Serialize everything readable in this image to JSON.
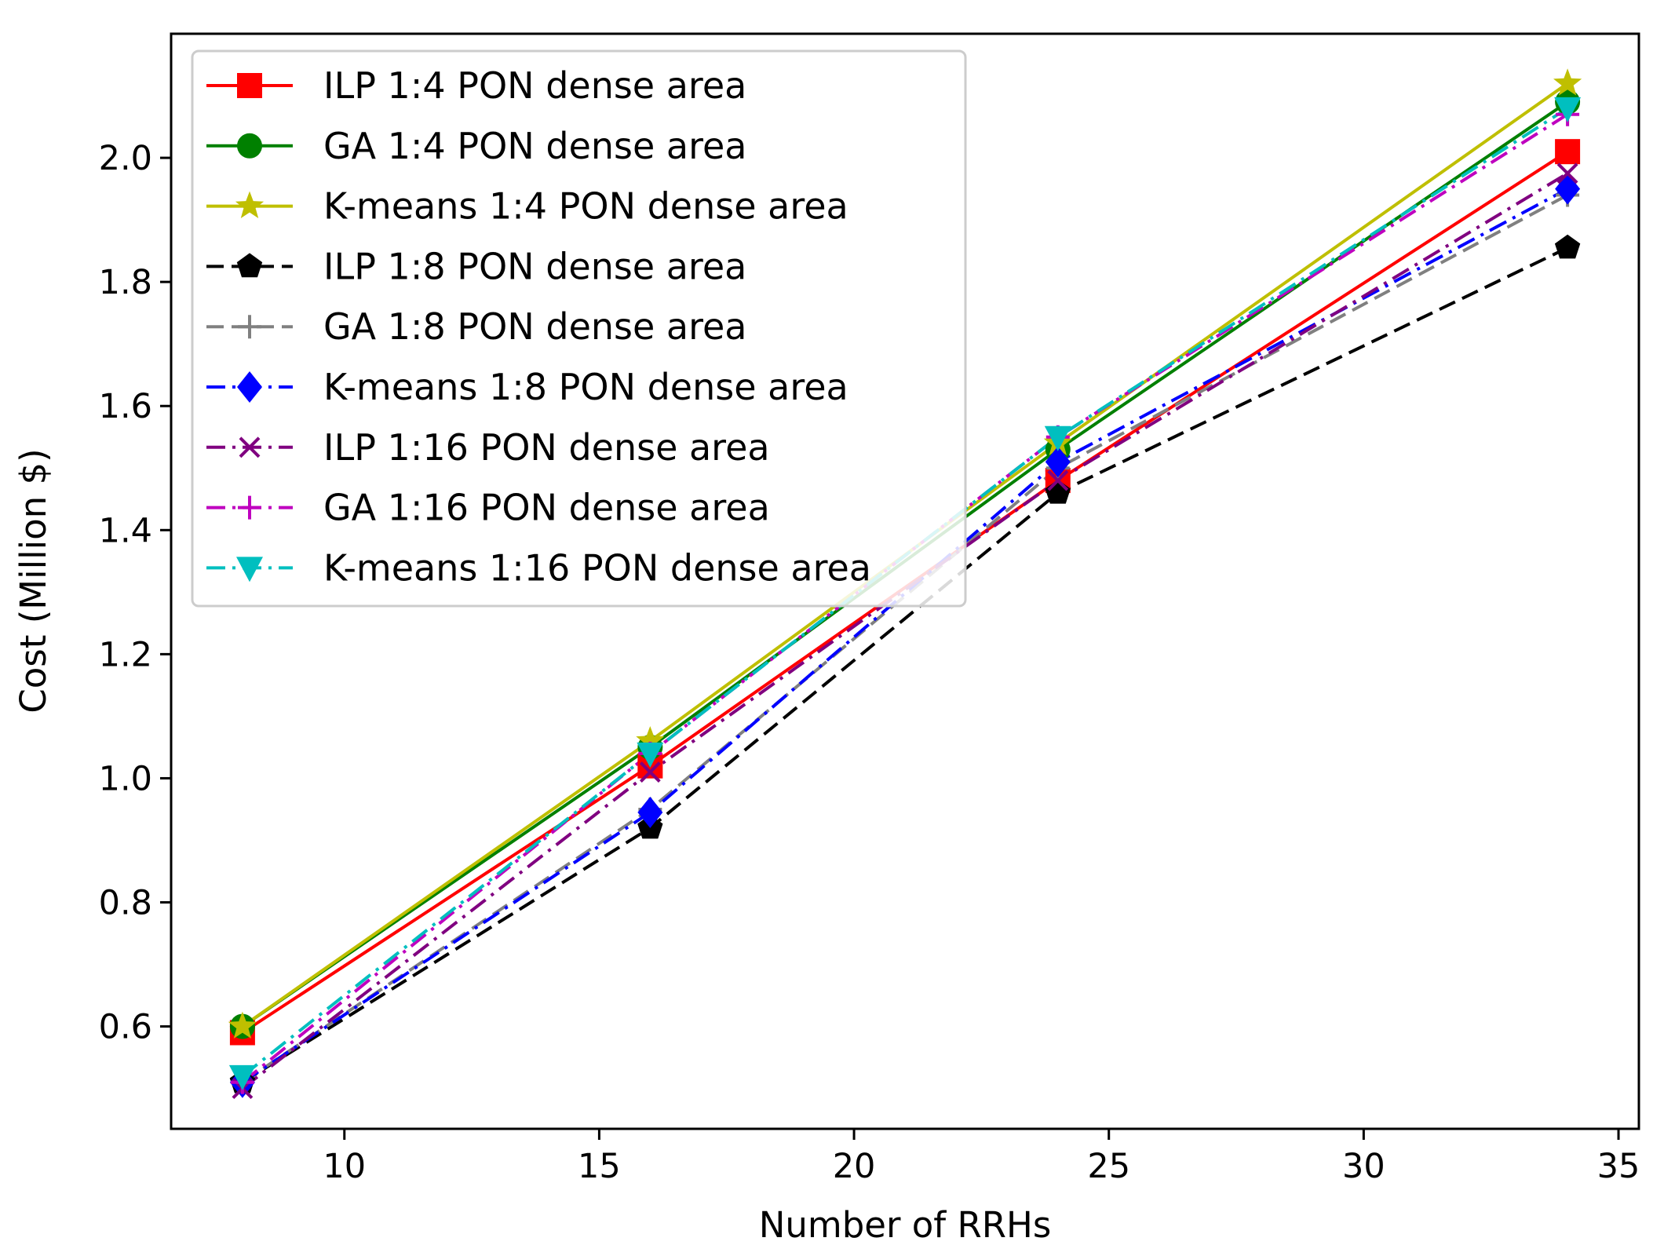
{
  "chart_data": {
    "type": "line",
    "title": "",
    "xlabel": "Number of RRHs",
    "ylabel": "Cost (Million $)",
    "xlim": [
      6.6,
      35.4
    ],
    "ylim": [
      0.435,
      2.2
    ],
    "xticks": [
      10,
      15,
      20,
      25,
      30,
      35
    ],
    "yticks": [
      0.6,
      0.8,
      1.0,
      1.2,
      1.4,
      1.6,
      1.8,
      2.0
    ],
    "xtick_labels": [
      "10",
      "15",
      "20",
      "25",
      "30",
      "35"
    ],
    "ytick_labels": [
      "0.6",
      "0.8",
      "1.0",
      "1.2",
      "1.4",
      "1.6",
      "1.8",
      "2.0"
    ],
    "grid": false,
    "legend_position": "upper-left",
    "x": [
      8,
      16,
      24,
      34
    ],
    "series": [
      {
        "name": "ILP 1:4 PON dense area",
        "values": [
          0.59,
          1.02,
          1.48,
          2.01
        ],
        "color": "#ff0000",
        "dash": "solid",
        "marker": "square"
      },
      {
        "name": "GA 1:4 PON dense area",
        "values": [
          0.6,
          1.05,
          1.53,
          2.09
        ],
        "color": "#008000",
        "dash": "solid",
        "marker": "circle"
      },
      {
        "name": "K-means 1:4 PON dense area",
        "values": [
          0.6,
          1.06,
          1.54,
          2.12
        ],
        "color": "#bfbf00",
        "dash": "solid",
        "marker": "star"
      },
      {
        "name": "ILP 1:8 PON dense area",
        "values": [
          0.51,
          0.92,
          1.46,
          1.855
        ],
        "color": "#000000",
        "dash": "dashed",
        "marker": "pentagon"
      },
      {
        "name": "GA 1:8 PON dense area",
        "values": [
          0.51,
          0.95,
          1.5,
          1.94
        ],
        "color": "#808080",
        "dash": "dashed",
        "marker": "plus"
      },
      {
        "name": "K-means 1:8 PON dense area",
        "values": [
          0.51,
          0.945,
          1.51,
          1.95
        ],
        "color": "#0000ff",
        "dash": "dashdot",
        "marker": "diamond"
      },
      {
        "name": "ILP 1:16 PON dense area",
        "values": [
          0.5,
          1.01,
          1.48,
          1.975
        ],
        "color": "#800080",
        "dash": "dashdot",
        "marker": "x"
      },
      {
        "name": "GA 1:16 PON dense area",
        "values": [
          0.51,
          1.04,
          1.55,
          2.07
        ],
        "color": "#bf00bf",
        "dash": "dashdot",
        "marker": "plus"
      },
      {
        "name": "K-means 1:16 PON dense area",
        "values": [
          0.52,
          1.04,
          1.55,
          2.08
        ],
        "color": "#00bfbf",
        "dash": "dashdot",
        "marker": "triangle-down"
      }
    ]
  }
}
